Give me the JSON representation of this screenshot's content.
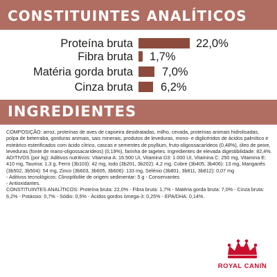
{
  "analytical": {
    "title": "CONSTITUINTES ANALÍTICOS",
    "items": [
      {
        "label": "Proteína bruta",
        "value": "22,0%",
        "percent": 22.0
      },
      {
        "label": "Fibra bruta",
        "value": "1,7%",
        "percent": 1.7
      },
      {
        "label": "Matéria gorda bruta",
        "value": "7,0%",
        "percent": 7.0
      },
      {
        "label": "Cinza bruta",
        "value": "6,2%",
        "percent": 6.2
      }
    ]
  },
  "ingredients": {
    "title": "INGREDIENTES",
    "composition": "COMPOSIÇÃO: arroz, proteínas de aves de capoeira desidratadas, milho, cevada, proteínas animais hidrolisadas, polpa de beterraba, gorduras animais, sais minerais, produtos de leveduras, mono- e diglicéridos de ácidos palmítico e esteárico esterificados com ácido cítrico, cascas e sementes de psyllium, fruto-oligossacarídeos (0,48%), óleo de peixe, leveduras (fonte de mano-oligossacarídeos) (0,19%), farinha de tagetes. Ingredientes de elevada digestibilidade: 82,4%.",
    "additives": "ADITIVOS (por kg): Aditivos nutritivos: Vitamina A: 16.500 UI, Vitamina D3: 1.000 UI, Vitamina C: 250 mg, Vitamina E: 410 mg, Taurina: 1,3 g, Ferro (3b103): 42 mg, Iodo (3b201, 3b202): 4,2 mg, Cobre (3b405, 3b406): 13 mg, Manganês (3b502, 3b504): 54 mg, Zinco (3b603, 3b605, 3b606): 133 mg, Selénio (3b801, 3b811, 3b812): 0,07 mg",
    "technological": "- Aditivos tecnológicos: Clinoptilolite de origem sedimentar: 5 g - Conservantes",
    "antioxidants": "- Antioxidantes.",
    "constituents": "CONSTITUINTES ANALÍTICOS: Proteína bruta: 22,0% - Fibra bruta: 1,7% - Matéria gorda bruta: 7,0% - Cinza bruta: 6,2% - Potássio: 0,7% - Sódio: 0,5% - Ácidos gordos ómega-3: 0,25% - EPA/DHA: 0,14%."
  },
  "colors": {
    "band": "#b06d62",
    "bar": "#8c4b3c"
  },
  "logo": {
    "brand": "ROYAL CANIN"
  }
}
